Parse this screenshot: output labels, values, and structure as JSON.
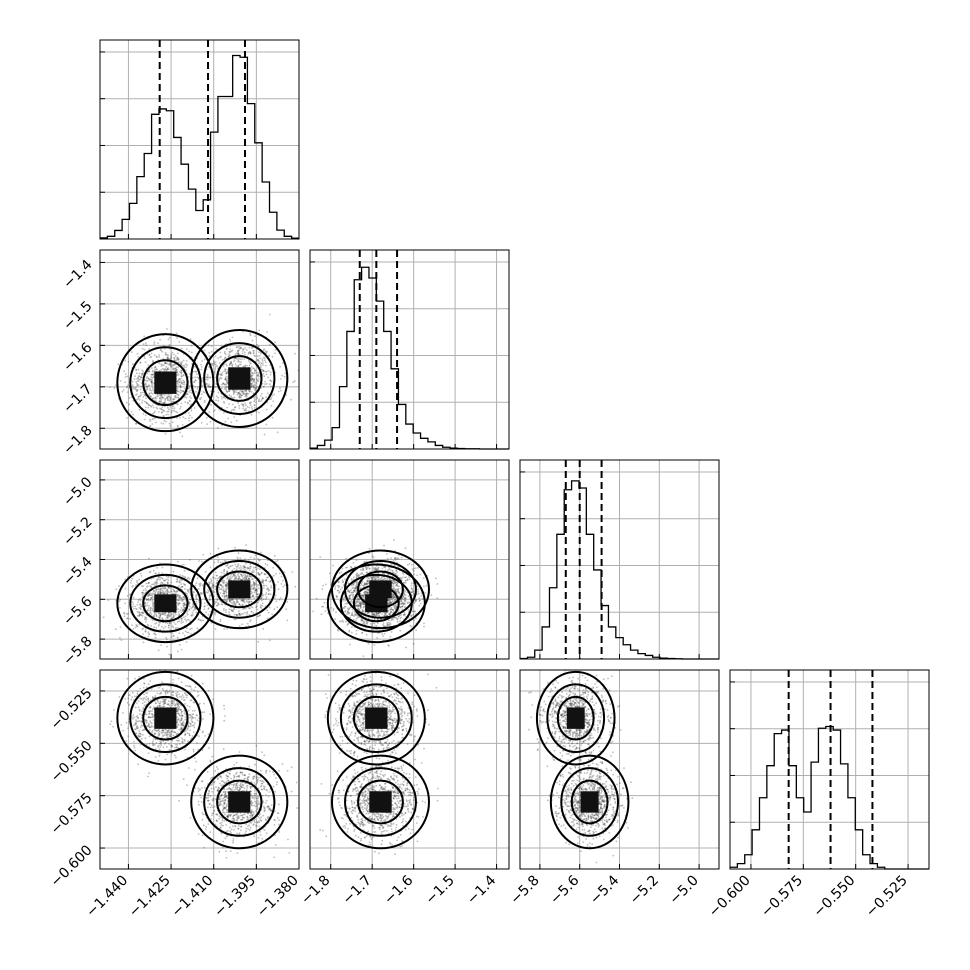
{
  "chart_data": {
    "type": "corner",
    "params": [
      {
        "id": "p1",
        "range": [
          -1.45,
          -1.38
        ],
        "ticks": [
          -1.44,
          -1.425,
          -1.41,
          -1.395,
          -1.38
        ],
        "tick_labels": [
          "−1.440",
          "−1.425",
          "−1.410",
          "−1.395",
          "−1.380"
        ],
        "quantiles": [
          -1.429,
          -1.412,
          -1.399
        ],
        "hist_edges": [
          -1.45,
          -1.38
        ],
        "hist_counts": [
          0.6,
          1.5,
          4.8,
          11,
          20,
          35,
          48,
          70,
          73,
          72,
          57,
          42,
          28,
          16,
          22,
          60,
          80,
          80,
          103,
          102,
          76,
          54,
          32,
          15,
          5,
          1.5,
          0.5
        ]
      },
      {
        "id": "p2",
        "range": [
          -1.85,
          -1.37
        ],
        "ticks": [
          -1.8,
          -1.7,
          -1.6,
          -1.5,
          -1.4
        ],
        "tick_labels": [
          "−1.8",
          "−1.7",
          "−1.6",
          "−1.5",
          "−1.4"
        ],
        "quantiles": [
          -1.73,
          -1.69,
          -1.64
        ],
        "hist_edges": [
          -1.85,
          -1.37
        ],
        "hist_counts": [
          0.5,
          2,
          5,
          12,
          35,
          66,
          95,
          102,
          96,
          83,
          66,
          45,
          25,
          14,
          9,
          6,
          4,
          2,
          1,
          0.5,
          0.3,
          0.1,
          0.1,
          0,
          0,
          0,
          0
        ]
      },
      {
        "id": "p3",
        "range": [
          -5.9,
          -4.9
        ],
        "ticks": [
          -5.8,
          -5.6,
          -5.4,
          -5.2,
          -5.0
        ],
        "tick_labels": [
          "−5.8",
          "−5.6",
          "−5.4",
          "−5.2",
          "−5.0"
        ],
        "quantiles": [
          -5.67,
          -5.6,
          -5.49
        ],
        "hist_edges": [
          -5.9,
          -4.9
        ],
        "hist_counts": [
          0.3,
          1,
          5,
          18,
          40,
          70,
          95,
          100,
          96,
          70,
          50,
          30,
          18,
          12,
          8,
          5,
          3,
          2,
          1,
          0.5,
          0.3,
          0.1,
          0,
          0,
          0,
          0,
          0
        ]
      },
      {
        "id": "p4",
        "range": [
          -0.61,
          -0.515
        ],
        "ticks": [
          -0.6,
          -0.575,
          -0.55,
          -0.525
        ],
        "tick_labels": [
          "−0.600",
          "−0.575",
          "−0.550",
          "−0.525"
        ],
        "quantiles": [
          -0.582,
          -0.562,
          -0.542
        ],
        "hist_edges": [
          -0.61,
          -0.515
        ],
        "hist_counts": [
          1,
          3,
          8,
          22,
          40,
          58,
          76,
          78,
          58,
          40,
          32,
          60,
          79,
          80,
          78,
          59,
          40,
          22,
          8,
          3,
          1,
          0,
          0,
          0,
          0,
          0,
          0
        ]
      }
    ],
    "modes": [
      {
        "p1": -1.427,
        "p2": -1.69,
        "p3": -5.62,
        "p4": -0.538,
        "w": 0.5
      },
      {
        "p1": -1.401,
        "p2": -1.68,
        "p3": -5.55,
        "p4": -0.578,
        "w": 0.5
      }
    ],
    "grid": true,
    "hist_max": 105
  }
}
